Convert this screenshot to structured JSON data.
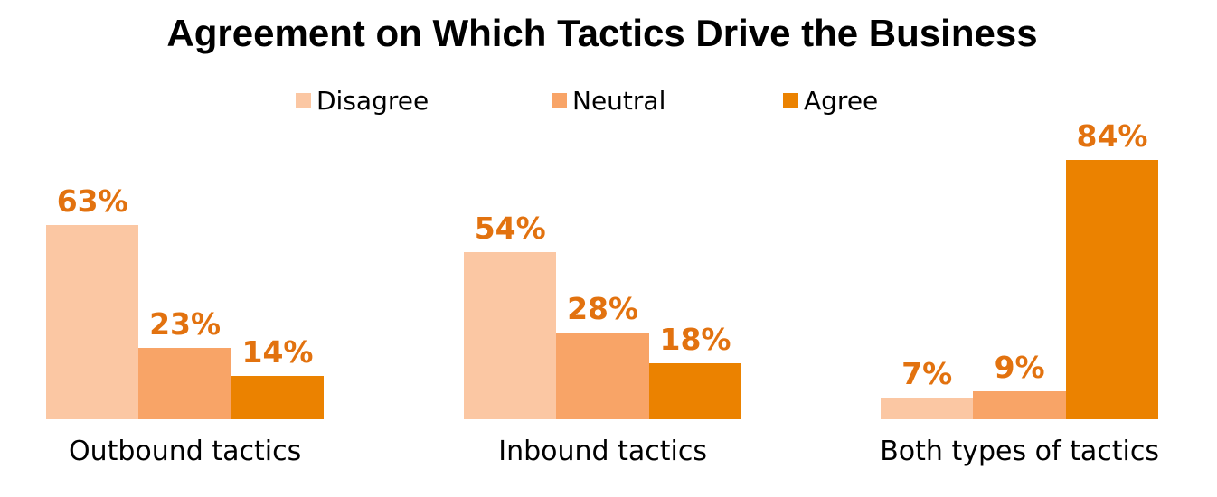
{
  "title": "Agreement on Which Tactics Drive the Business",
  "chart_data": {
    "type": "bar",
    "title": "Agreement on Which Tactics Drive the Business",
    "categories": [
      "Outbound tactics",
      "Inbound tactics",
      "Both types of tactics"
    ],
    "series": [
      {
        "name": "Disagree",
        "color": "#FBC7A3",
        "values": [
          63,
          54,
          7
        ]
      },
      {
        "name": "Neutral",
        "color": "#F8A467",
        "values": [
          23,
          28,
          9
        ]
      },
      {
        "name": "Agree",
        "color": "#EB8200",
        "values": [
          14,
          18,
          84
        ]
      }
    ],
    "value_suffix": "%",
    "data_label_color": "#E2720F",
    "title_color": "#000000",
    "text_color": "#000000",
    "background_color": "#FFFFFF",
    "ylim": [
      0,
      100
    ],
    "grid": false,
    "axes_visible": false,
    "legend_position": "top",
    "data_labels": "outside-end",
    "xlabel": "",
    "ylabel": ""
  }
}
